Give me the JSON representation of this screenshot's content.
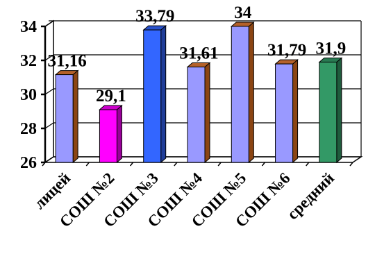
{
  "chart_data": {
    "type": "bar",
    "title": "",
    "xlabel": "",
    "ylabel": "",
    "categories": [
      "лицей",
      "СОШ №2",
      "СОШ №3",
      "СОШ №4",
      "СОШ №5",
      "СОШ №6",
      "средний"
    ],
    "values": [
      31.16,
      29.1,
      33.79,
      31.61,
      34,
      31.79,
      31.9
    ],
    "data_labels": [
      "31,16",
      "29,1",
      "33,79",
      "31,61",
      "34",
      "31,79",
      "31,9"
    ],
    "ylim": [
      26,
      34
    ],
    "yticks": [
      26,
      28,
      30,
      32,
      34
    ],
    "ytick_labels": [
      "26",
      "28",
      "30",
      "32",
      "34"
    ],
    "grid": true,
    "legend": "none",
    "bar_colors": [
      "#9999ff",
      "#ff00ff",
      "#3366ff",
      "#9999ff",
      "#9999ff",
      "#9999ff",
      "#339966"
    ],
    "bar_top_color": "#b4612a",
    "bar_side_color": "#8b4513"
  }
}
